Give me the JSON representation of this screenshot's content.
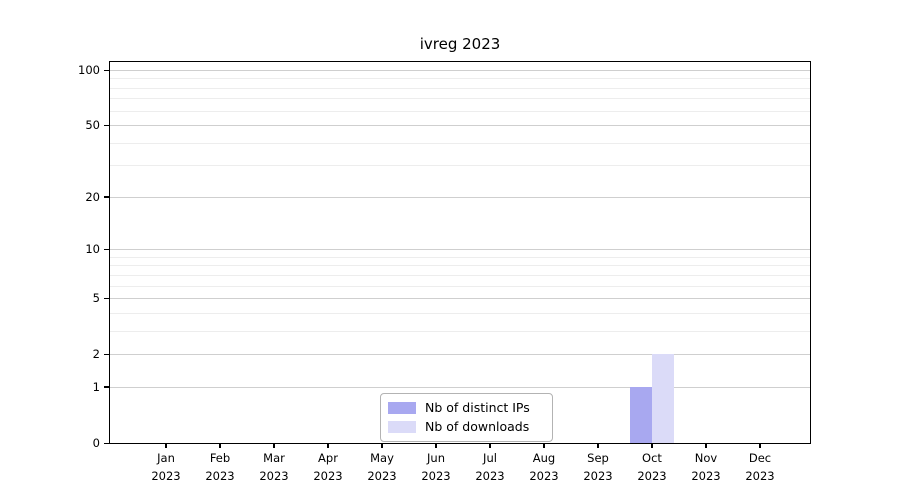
{
  "chart_data": {
    "type": "bar",
    "title": "ivreg 2023",
    "x_year": "2023",
    "categories": [
      "Jan",
      "Feb",
      "Mar",
      "Apr",
      "May",
      "Jun",
      "Jul",
      "Aug",
      "Sep",
      "Oct",
      "Nov",
      "Dec"
    ],
    "series": [
      {
        "name": "Nb of distinct IPs",
        "color": "#a8a8f0",
        "values": [
          0,
          0,
          0,
          0,
          0,
          0,
          0,
          0,
          0,
          1,
          0,
          0
        ]
      },
      {
        "name": "Nb of downloads",
        "color": "#dbdbf8",
        "values": [
          0,
          0,
          0,
          0,
          0,
          0,
          0,
          0,
          0,
          2,
          0,
          0
        ]
      }
    ],
    "y_axis": {
      "scale": "log1p",
      "ticks": [
        0,
        1,
        2,
        5,
        10,
        20,
        50,
        100
      ],
      "minor_gridlines": [
        3,
        4,
        6,
        7,
        8,
        9,
        30,
        40,
        60,
        70,
        80,
        90
      ],
      "range": [
        0,
        110
      ]
    },
    "legend_position": "bottom-center",
    "colors": {
      "major_grid": "#cfcfcf",
      "minor_grid": "#ededed",
      "frame": "#000000",
      "legend_border": "#b3b3b3",
      "text": "#000000"
    }
  }
}
